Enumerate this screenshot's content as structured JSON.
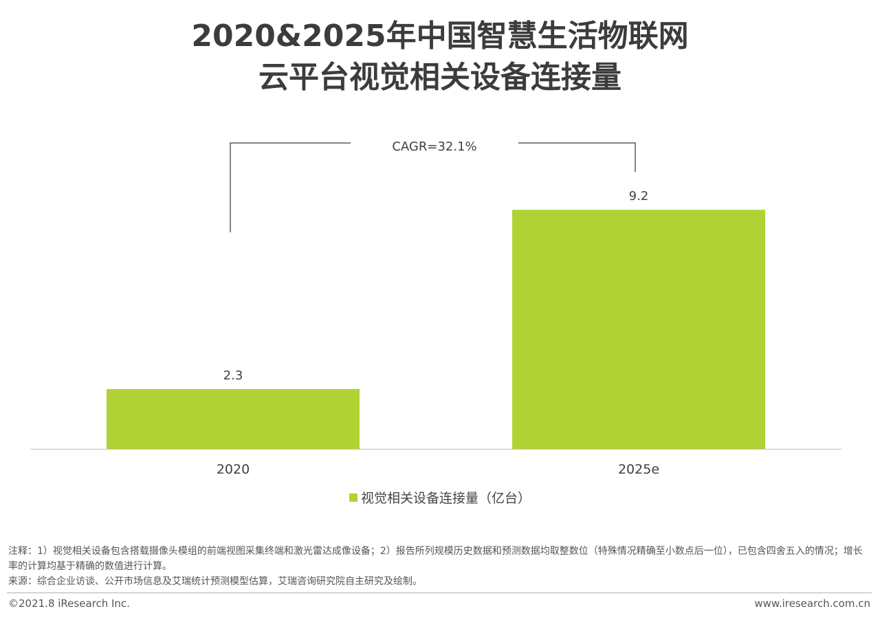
{
  "title_line1": "2020&2025年中国智慧生活物联网",
  "title_line2": "云平台视觉相关设备连接量",
  "chart_data": {
    "type": "bar",
    "categories": [
      "2020",
      "2025e"
    ],
    "series": [
      {
        "name": "视觉相关设备连接量（亿台）",
        "values": [
          2.3,
          9.2
        ],
        "color": "#b1d235"
      }
    ],
    "data_labels": [
      "2.3",
      "9.2"
    ],
    "annotation": "CAGR=32.1%",
    "legend_position": "bottom",
    "grid": false,
    "bar_color": "#b1d235",
    "axis_color": "#bfbfbf",
    "bracket_color": "#595959"
  },
  "notes": {
    "note1": "注释：1）视觉相关设备包含搭载摄像头模组的前端视图采集终端和激光雷达成像设备；2）报告所列规模历史数据和预测数据均取整数位（特殊情况精确至小数点后一位），已包含四舍五入的情况；增长率的计算均基于精确的数值进行计算。",
    "source": "来源：综合企业访谈、公开市场信息及艾瑞统计预测模型估算，艾瑞咨询研究院自主研究及绘制。"
  },
  "footer": {
    "copyright": "©2021.8 iResearch Inc.",
    "website": "www.iresearch.com.cn"
  }
}
